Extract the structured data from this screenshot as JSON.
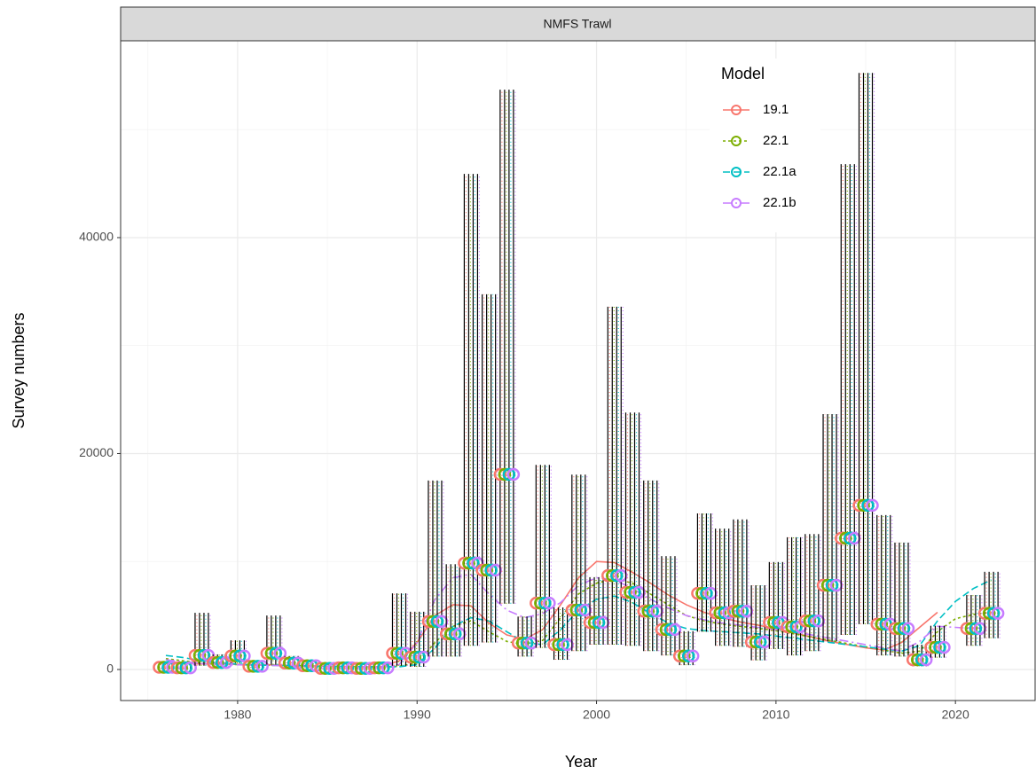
{
  "chart_data": {
    "type": "line",
    "title": "NMFS Trawl",
    "xlabel": "Year",
    "ylabel": "Survey numbers",
    "legend_title": "Model",
    "legend_position": "top-right",
    "grid": true,
    "xlim": [
      1973.48,
      2024.44
    ],
    "xticks": [
      1980,
      1990,
      2000,
      2010,
      2020
    ],
    "ylim": [
      -2875,
      58230
    ],
    "yticks": [
      0,
      20000,
      40000
    ],
    "x": [
      1976,
      1977,
      1978,
      1979,
      1980,
      1981,
      1982,
      1983,
      1984,
      1985,
      1986,
      1987,
      1988,
      1989,
      1990,
      1991,
      1992,
      1993,
      1994,
      1995,
      1996,
      1997,
      1998,
      1999,
      2000,
      2001,
      2002,
      2003,
      2004,
      2005,
      2006,
      2007,
      2008,
      2009,
      2010,
      2011,
      2012,
      2013,
      2014,
      2015,
      2016,
      2017,
      2018,
      2019,
      2020,
      2021,
      2022
    ],
    "series": [
      {
        "name": "19.1",
        "color": "#F8766D",
        "dash": "",
        "values": [
          600,
          550,
          520,
          500,
          480,
          450,
          420,
          380,
          340,
          300,
          280,
          260,
          250,
          800,
          2500,
          5000,
          6000,
          5900,
          4300,
          3200,
          2800,
          3700,
          6000,
          8500,
          10000,
          9900,
          9000,
          8000,
          6900,
          6000,
          5300,
          4800,
          4400,
          4100,
          3800,
          3400,
          3000,
          2600,
          2300,
          2000,
          1800,
          2500,
          3900,
          5300,
          null,
          null,
          null
        ]
      },
      {
        "name": "22.1",
        "color": "#7CAE00",
        "dash": "3 3",
        "values": [
          1000,
          800,
          600,
          500,
          450,
          400,
          380,
          350,
          320,
          300,
          280,
          260,
          240,
          300,
          600,
          2500,
          4000,
          4500,
          3500,
          2600,
          2300,
          2700,
          4800,
          7000,
          8000,
          8400,
          8000,
          7000,
          6000,
          5000,
          4500,
          4200,
          4000,
          3800,
          3600,
          3300,
          3000,
          2700,
          2400,
          2100,
          1800,
          1500,
          1700,
          3500,
          4700,
          5100,
          5300
        ]
      },
      {
        "name": "22.1a",
        "color": "#00BFC4",
        "dash": "8 4",
        "values": [
          1300,
          1100,
          800,
          600,
          500,
          420,
          380,
          350,
          320,
          300,
          280,
          260,
          240,
          250,
          450,
          2000,
          4000,
          4800,
          4500,
          3500,
          2500,
          2300,
          3700,
          5500,
          6500,
          6800,
          6200,
          5200,
          4300,
          3800,
          3600,
          3500,
          3400,
          3300,
          3100,
          2900,
          2700,
          2500,
          2300,
          2100,
          1900,
          1700,
          2200,
          4500,
          6300,
          7500,
          8300
        ]
      },
      {
        "name": "22.1b",
        "color": "#C77CFF",
        "dash": "10 4 2 4",
        "values": [
          900,
          700,
          550,
          480,
          430,
          400,
          370,
          340,
          310,
          290,
          270,
          250,
          240,
          450,
          2500,
          6500,
          8500,
          8800,
          7000,
          5500,
          4800,
          5200,
          6200,
          7800,
          8500,
          8300,
          7500,
          6500,
          5700,
          5000,
          4600,
          4300,
          4100,
          3900,
          3700,
          3500,
          3200,
          2900,
          2600,
          2300,
          2000,
          1700,
          2600,
          4000,
          3900,
          3800,
          3900
        ]
      }
    ],
    "observed": {
      "x": [
        1976,
        1977,
        1978,
        1979,
        1980,
        1981,
        1982,
        1983,
        1984,
        1985,
        1986,
        1987,
        1988,
        1989,
        1990,
        1991,
        1992,
        1993,
        1994,
        1995,
        1996,
        1997,
        1998,
        1999,
        2000,
        2001,
        2002,
        2003,
        2004,
        2005,
        2006,
        2007,
        2008,
        2009,
        2010,
        2011,
        2012,
        2013,
        2014,
        2015,
        2016,
        2017,
        2018,
        2019,
        2021,
        2022
      ],
      "values": [
        200,
        150,
        1300,
        650,
        1250,
        300,
        1500,
        600,
        350,
        100,
        150,
        100,
        150,
        1500,
        1150,
        4450,
        3300,
        9850,
        9200,
        18070,
        2450,
        6150,
        2300,
        5500,
        4350,
        8700,
        7150,
        5400,
        3700,
        1250,
        7050,
        5250,
        5400,
        2550,
        4350,
        3950,
        4500,
        7800,
        12150,
        15200,
        4200,
        3800,
        900,
        2050,
        3800,
        5200
      ],
      "upper": [
        600,
        400,
        5250,
        1400,
        2700,
        600,
        5000,
        1250,
        650,
        250,
        350,
        250,
        350,
        7050,
        5350,
        17500,
        9750,
        45900,
        34750,
        53700,
        4900,
        18950,
        5750,
        18050,
        8550,
        33600,
        23800,
        17500,
        10500,
        3550,
        14450,
        13050,
        13900,
        7800,
        9950,
        12250,
        12550,
        23650,
        46800,
        55250,
        14300,
        11750,
        2300,
        4050,
        6900,
        9050
      ],
      "lower": [
        70,
        50,
        350,
        300,
        600,
        150,
        450,
        250,
        150,
        40,
        60,
        40,
        60,
        350,
        250,
        1200,
        1200,
        2200,
        2500,
        6100,
        1200,
        2000,
        900,
        1700,
        2300,
        2300,
        2200,
        1700,
        1300,
        400,
        3500,
        2200,
        2100,
        850,
        1900,
        1300,
        1700,
        2600,
        3200,
        4200,
        1300,
        1200,
        300,
        1100,
        2200,
        2900
      ]
    }
  }
}
